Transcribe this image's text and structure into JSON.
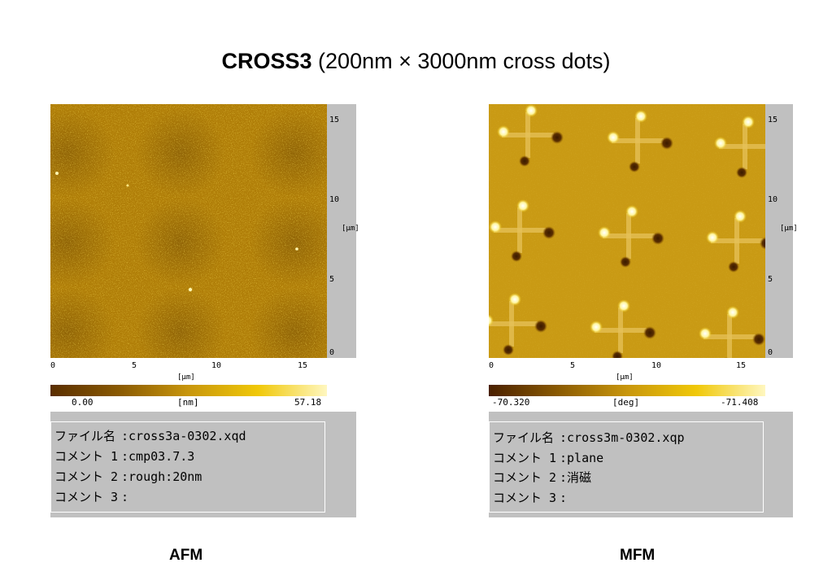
{
  "title": {
    "bold": "CROSS3",
    "rest": " (200nm × 3000nm cross dots)"
  },
  "panels": [
    {
      "caption": "AFM",
      "x_ticks": [
        "0",
        "5",
        "10",
        "15"
      ],
      "y_ticks": [
        "0",
        "5",
        "10",
        "15"
      ],
      "x_unit": "[μm]",
      "y_unit": "[μm]",
      "colorbar": {
        "min": "0.00",
        "unit": "[nm]",
        "max": "57.18"
      },
      "info": [
        {
          "key": "ファイル名",
          "value": "cross3a-0302.xqd"
        },
        {
          "key": "コメント 1",
          "value": "cmp03.7.3"
        },
        {
          "key": "コメント 2",
          "value": "rough:20nm"
        },
        {
          "key": "コメント 3",
          "value": ""
        }
      ]
    },
    {
      "caption": "MFM",
      "x_ticks": [
        "0",
        "5",
        "10",
        "15"
      ],
      "y_ticks": [
        "0",
        "5",
        "10",
        "15"
      ],
      "x_unit": "[μm]",
      "y_unit": "[μm]",
      "colorbar": {
        "min": "-70.320",
        "unit": "[deg]",
        "max": "-71.408"
      },
      "info": [
        {
          "key": "ファイル名",
          "value": "cross3m-0302.xqp"
        },
        {
          "key": "コメント 1",
          "value": "plane"
        },
        {
          "key": "コメント 2",
          "value": "消磁"
        },
        {
          "key": "コメント 3",
          "value": ""
        }
      ]
    }
  ],
  "colors": {
    "afm_base": "#b07e08",
    "mfm_base": "#c99a14",
    "panel_bg": "#c0c0c0"
  }
}
